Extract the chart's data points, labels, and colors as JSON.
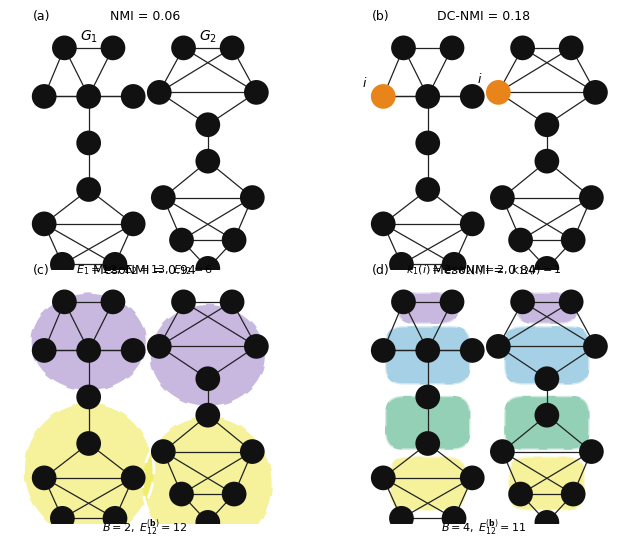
{
  "panel_a_title": "NMI = 0.06",
  "panel_b_title": "DC-NMI = 0.18",
  "panel_c_title": "MesoNMI = 0.94",
  "panel_d_title": "MesoNMI = 0.84",
  "panel_a_label": "(a)",
  "panel_b_label": "(b)",
  "panel_c_label": "(c)",
  "panel_d_label": "(d)",
  "panel_a_g1": "$G_1$",
  "panel_a_g2": "$G_2$",
  "panel_a_subtitle": "$E_1 = 12, \\; E_2 = 13, \\; E_{12} = 6$",
  "panel_b_subtitle": "$k_1(i) = 2, \\; k_2(i) = 2, \\; k_{12}(i) = 1$",
  "panel_c_subtitle": "$B = 2, \\; E_{12}^{(\\mathbf{b})} = 12$",
  "panel_d_subtitle": "$B = 4, \\; E_{12}^{(\\mathbf{b})} = 11$",
  "node_color_black": "#111111",
  "node_color_orange": "#E8841A",
  "edge_color": "#222222",
  "bg_color": "#ffffff",
  "color_purple": "#9B7EC8",
  "color_yellow": "#EDE84A",
  "color_blue": "#5BAAD0",
  "color_green": "#3DAA7A"
}
